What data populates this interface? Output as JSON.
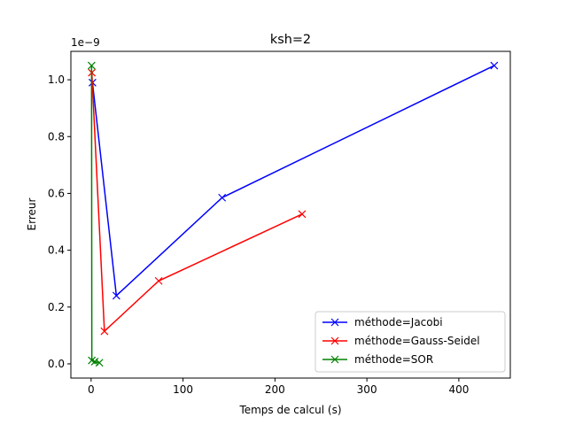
{
  "chart_data": {
    "type": "line",
    "title": "ksh=2",
    "xlabel": "Temps de calcul (s)",
    "ylabel": "Erreur",
    "y_offset_label": "1e−9",
    "xlim": [
      -22,
      456
    ],
    "ylim": [
      -0.05,
      1.1
    ],
    "x_ticks": [
      0,
      100,
      200,
      300,
      400
    ],
    "y_ticks": [
      0.0,
      0.2,
      0.4,
      0.6,
      0.8,
      1.0
    ],
    "y_tick_labels": [
      "0.0",
      "0.2",
      "0.4",
      "0.6",
      "0.8",
      "1.0"
    ],
    "grid": false,
    "legend_position": "lower right",
    "marker": "x",
    "series": [
      {
        "name": "méthode=Jacobi",
        "color": "#0000ff",
        "x": [
          1.5,
          27.5,
          142.5,
          438.5
        ],
        "y": [
          0.99,
          0.24,
          0.585,
          1.05
        ]
      },
      {
        "name": "méthode=Gauss-Seidel",
        "color": "#ff0000",
        "x": [
          0.8,
          14.5,
          73.5,
          229.5
        ],
        "y": [
          1.025,
          0.115,
          0.292,
          0.527
        ]
      },
      {
        "name": "méthode=SOR",
        "color": "#008000",
        "x": [
          0.5,
          0.8,
          4.0,
          9.0
        ],
        "y": [
          1.05,
          0.012,
          0.008,
          0.004
        ]
      }
    ]
  }
}
